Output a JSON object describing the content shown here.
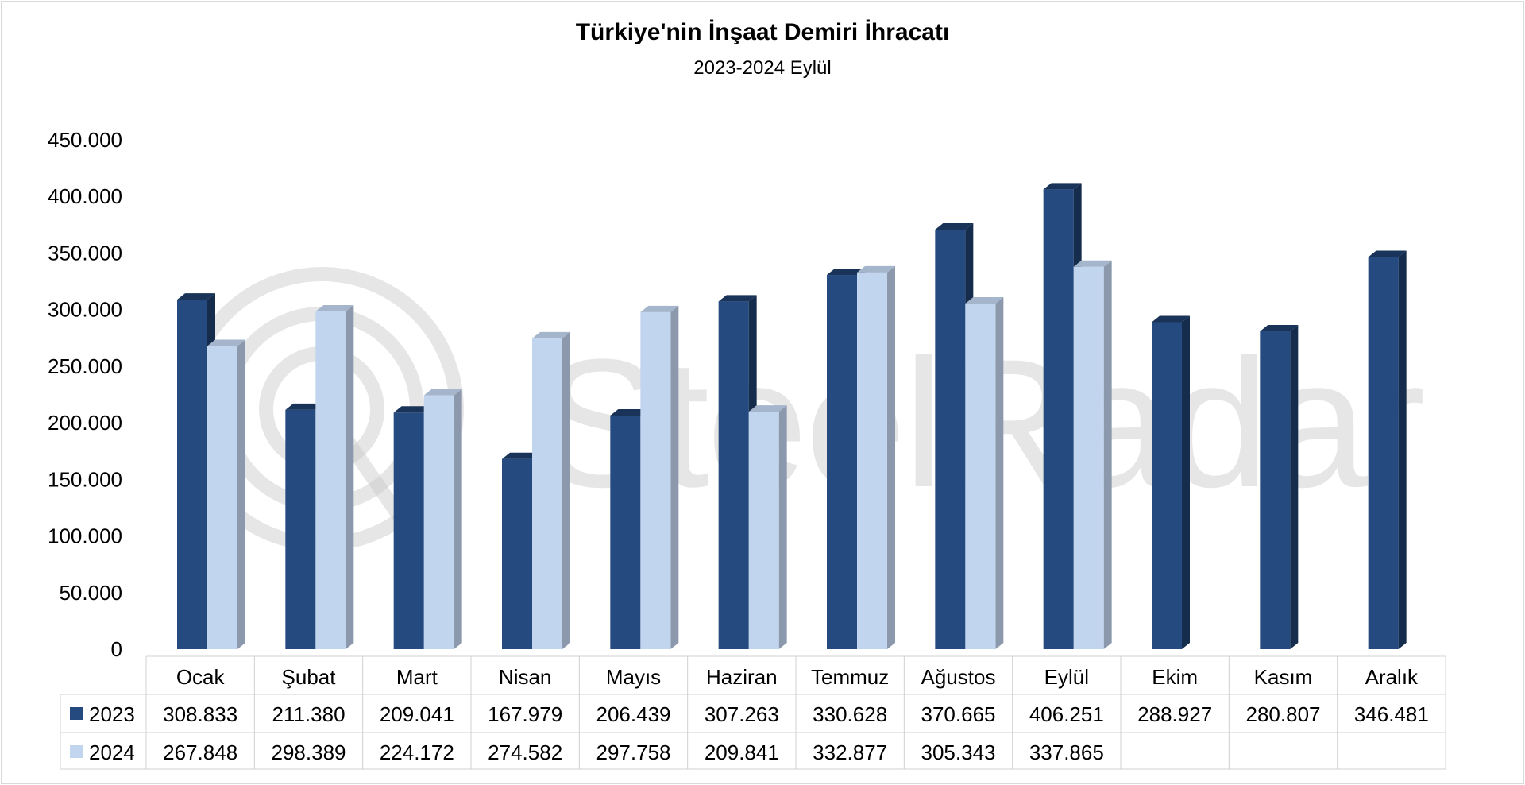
{
  "chart_data": {
    "type": "bar",
    "title": "Türkiye'nin İnşaat Demiri İhracatı",
    "subtitle": "2023-2024 Eylül",
    "categories": [
      "Ocak",
      "Şubat",
      "Mart",
      "Nisan",
      "Mayıs",
      "Haziran",
      "Temmuz",
      "Ağustos",
      "Eylül",
      "Ekim",
      "Kasım",
      "Aralık"
    ],
    "series": [
      {
        "name": "2023",
        "color": "#254a7f",
        "values": [
          308833,
          211380,
          209041,
          167979,
          206439,
          307263,
          330628,
          370665,
          406251,
          288927,
          280807,
          346481
        ],
        "labels": [
          "308.833",
          "211.380",
          "209.041",
          "167.979",
          "206.439",
          "307.263",
          "330.628",
          "370.665",
          "406.251",
          "288.927",
          "280.807",
          "346.481"
        ]
      },
      {
        "name": "2024",
        "color": "#c2d5ef",
        "values": [
          267848,
          298389,
          224172,
          274582,
          297758,
          209841,
          332877,
          305343,
          337865,
          null,
          null,
          null
        ],
        "labels": [
          "267.848",
          "298.389",
          "224.172",
          "274.582",
          "297.758",
          "209.841",
          "332.877",
          "305.343",
          "337.865",
          "",
          "",
          ""
        ]
      }
    ],
    "ylim": [
      0,
      450000
    ],
    "yticks": [
      0,
      50000,
      100000,
      150000,
      200000,
      250000,
      300000,
      350000,
      400000,
      450000
    ],
    "ytick_labels": [
      "0",
      "50.000",
      "100.000",
      "150.000",
      "200.000",
      "250.000",
      "300.000",
      "350.000",
      "400.000",
      "450.000"
    ],
    "grid": false,
    "legend": "data-table",
    "style": "3d-column"
  },
  "watermark": "SteelRadar"
}
